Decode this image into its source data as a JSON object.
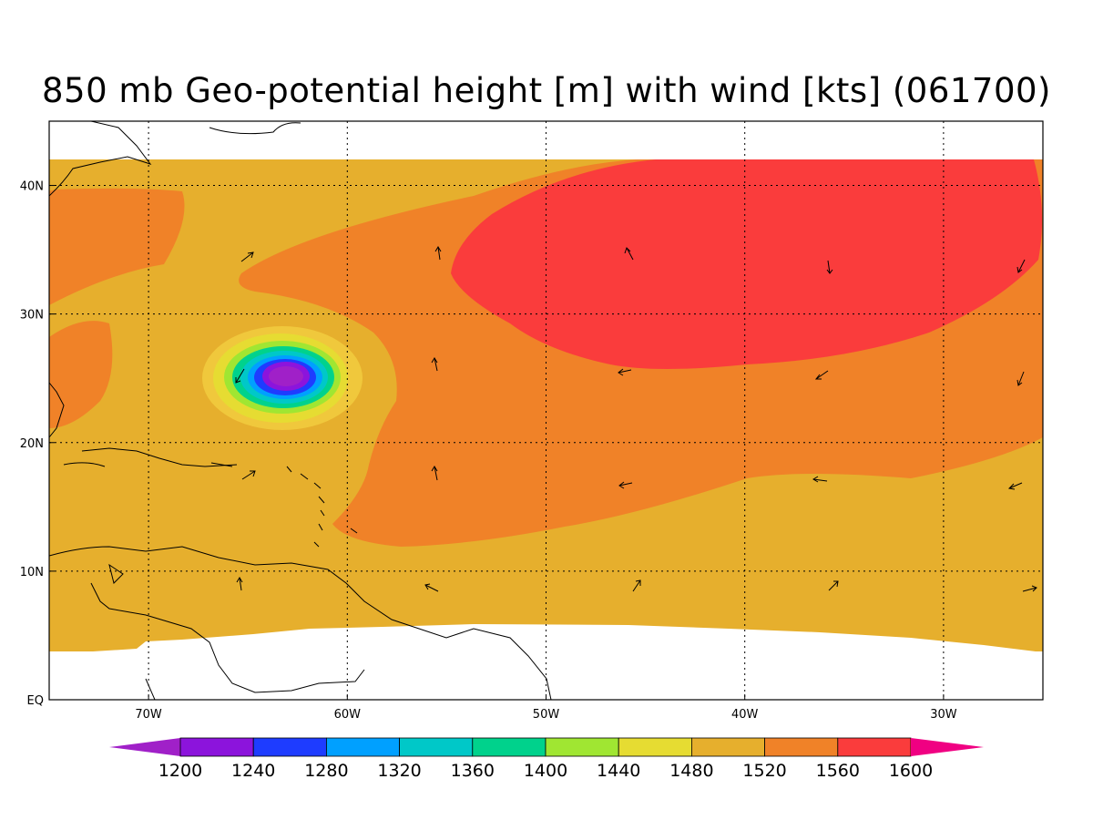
{
  "title": "850 mb Geo-potential height [m] with wind [kts] (061700)",
  "map": {
    "lon_range": [
      -75,
      -25
    ],
    "lat_range": [
      0,
      45
    ],
    "lat_ticks": [
      {
        "value": 40,
        "label": "40N"
      },
      {
        "value": 30,
        "label": "30N"
      },
      {
        "value": 20,
        "label": "20N"
      },
      {
        "value": 10,
        "label": "10N"
      },
      {
        "value": 0,
        "label": "EQ"
      }
    ],
    "lon_ticks": [
      {
        "value": -70,
        "label": "70W"
      },
      {
        "value": -60,
        "label": "60W"
      },
      {
        "value": -50,
        "label": "50W"
      },
      {
        "value": -40,
        "label": "40W"
      },
      {
        "value": -30,
        "label": "30W"
      }
    ],
    "grid": "dotted",
    "fields": {
      "background_level": 1500,
      "high_center": {
        "lon": -40,
        "lat": 33,
        "level": 1580
      },
      "low_center": {
        "lon": -63,
        "lat": 25,
        "level": 1210
      }
    }
  },
  "colorbar": {
    "levels": [
      "1200",
      "1240",
      "1280",
      "1320",
      "1360",
      "1400",
      "1440",
      "1480",
      "1520",
      "1560",
      "1600"
    ],
    "colors": [
      "#a020c8",
      "#8c14dc",
      "#1e3cff",
      "#00a0ff",
      "#00c8c8",
      "#00d28c",
      "#a0e632",
      "#e6dc32",
      "#e6af2d",
      "#f08228",
      "#fa3c3c",
      "#f00082"
    ]
  }
}
